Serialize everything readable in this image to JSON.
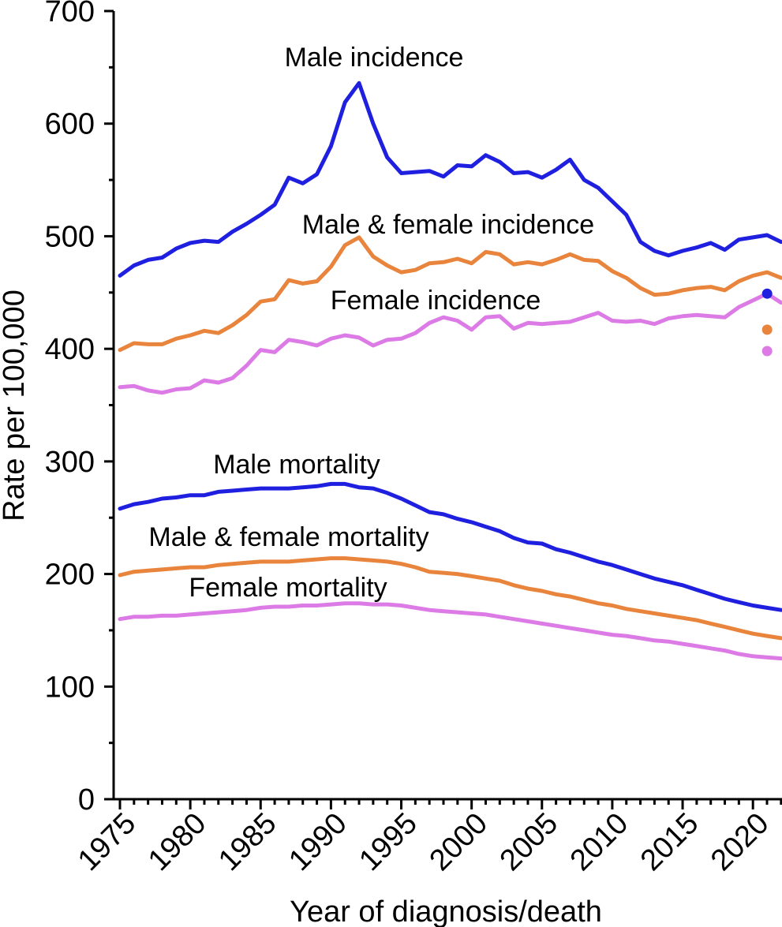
{
  "colors": {
    "male": "#1f1fe0",
    "both": "#e8843c",
    "female": "#dc7be6"
  },
  "chart_data": {
    "type": "line",
    "xlabel": "Year of diagnosis/death",
    "ylabel": "Rate per 100,000",
    "xlim": [
      1975,
      2022
    ],
    "ylim": [
      0,
      700
    ],
    "xticks": [
      1975,
      1980,
      1985,
      1990,
      1995,
      2000,
      2005,
      2010,
      2015,
      2020
    ],
    "yticks": [
      0,
      100,
      200,
      300,
      400,
      500,
      600,
      700
    ],
    "grid": false,
    "x": [
      1975,
      1976,
      1977,
      1978,
      1979,
      1980,
      1981,
      1982,
      1983,
      1984,
      1985,
      1986,
      1987,
      1988,
      1989,
      1990,
      1991,
      1992,
      1993,
      1994,
      1995,
      1996,
      1997,
      1998,
      1999,
      2000,
      2001,
      2002,
      2003,
      2004,
      2005,
      2006,
      2007,
      2008,
      2009,
      2010,
      2011,
      2012,
      2013,
      2014,
      2015,
      2016,
      2017,
      2018,
      2019,
      2020,
      2021,
      2022
    ],
    "series": [
      {
        "name": "Male incidence",
        "color_key": "male",
        "values": [
          465,
          474,
          479,
          481,
          489,
          494,
          496,
          495,
          504,
          511,
          519,
          528,
          552,
          547,
          555,
          580,
          619,
          636,
          600,
          570,
          556,
          557,
          558,
          553,
          563,
          562,
          572,
          566,
          556,
          557,
          552,
          559,
          568,
          550,
          543,
          531,
          519,
          495,
          487,
          483,
          487,
          490,
          494,
          488,
          497,
          499,
          501,
          495
        ]
      },
      {
        "name": "Male & female incidence",
        "color_key": "both",
        "values": [
          399,
          405,
          404,
          404,
          409,
          412,
          416,
          414,
          421,
          430,
          442,
          444,
          461,
          458,
          460,
          473,
          492,
          499,
          482,
          474,
          468,
          470,
          476,
          477,
          480,
          476,
          486,
          484,
          475,
          477,
          475,
          479,
          484,
          479,
          478,
          469,
          463,
          454,
          448,
          449,
          452,
          454,
          455,
          452,
          460,
          465,
          468,
          463
        ]
      },
      {
        "name": "Female incidence",
        "color_key": "female",
        "values": [
          366,
          367,
          363,
          361,
          364,
          365,
          372,
          370,
          374,
          385,
          399,
          397,
          408,
          406,
          403,
          409,
          412,
          410,
          403,
          408,
          409,
          414,
          423,
          428,
          425,
          417,
          428,
          429,
          418,
          423,
          422,
          423,
          424,
          428,
          432,
          425,
          424,
          425,
          422,
          427,
          429,
          430,
          429,
          428,
          437,
          443,
          449,
          441
        ]
      },
      {
        "name": "Male mortality",
        "color_key": "male",
        "values": [
          258,
          262,
          264,
          267,
          268,
          270,
          270,
          273,
          274,
          275,
          276,
          276,
          276,
          277,
          278,
          280,
          280,
          277,
          276,
          272,
          267,
          261,
          255,
          253,
          249,
          246,
          242,
          238,
          232,
          228,
          227,
          222,
          219,
          215,
          211,
          208,
          204,
          200,
          196,
          193,
          190,
          186,
          182,
          178,
          175,
          172,
          170,
          168
        ]
      },
      {
        "name": "Male & female mortality",
        "color_key": "both",
        "values": [
          199,
          202,
          203,
          204,
          205,
          206,
          206,
          208,
          209,
          210,
          211,
          211,
          211,
          212,
          213,
          214,
          214,
          213,
          212,
          211,
          209,
          206,
          202,
          201,
          200,
          198,
          196,
          194,
          190,
          187,
          185,
          182,
          180,
          177,
          174,
          172,
          169,
          167,
          165,
          163,
          161,
          159,
          156,
          153,
          150,
          147,
          145,
          143
        ]
      },
      {
        "name": "Female mortality",
        "color_key": "female",
        "values": [
          160,
          162,
          162,
          163,
          163,
          164,
          165,
          166,
          167,
          168,
          170,
          171,
          171,
          172,
          172,
          173,
          174,
          174,
          173,
          173,
          172,
          170,
          168,
          167,
          166,
          165,
          164,
          162,
          160,
          158,
          156,
          154,
          152,
          150,
          148,
          146,
          145,
          143,
          141,
          140,
          138,
          136,
          134,
          132,
          129,
          127,
          126,
          125
        ]
      }
    ],
    "series_labels": [
      "Male incidence",
      "Male & female incidence",
      "Female incidence",
      "Male mortality",
      "Male & female mortality",
      "Female mortality"
    ],
    "extra_points": [
      {
        "x": 2020,
        "y": 449,
        "color_key": "male"
      },
      {
        "x": 2020,
        "y": 417,
        "color_key": "both"
      },
      {
        "x": 2020,
        "y": 398,
        "color_key": "female"
      }
    ]
  }
}
